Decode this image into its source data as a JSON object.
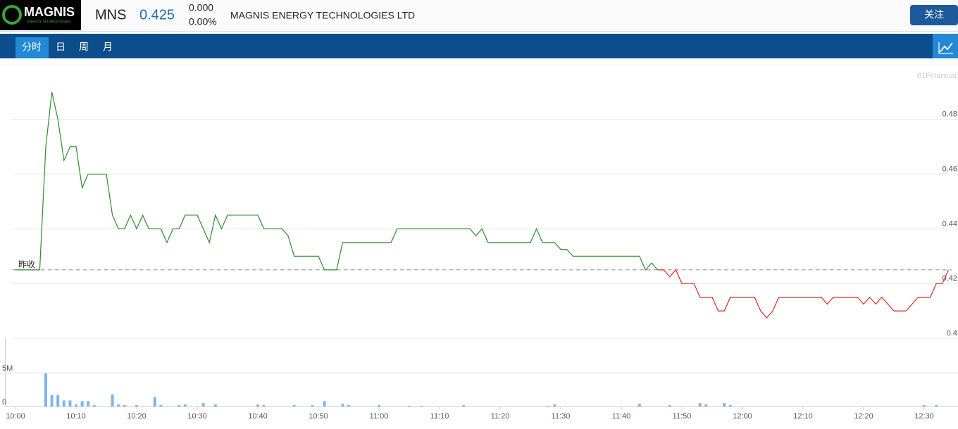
{
  "header": {
    "logo": "MAGNIS",
    "logo_sub": "ENERGY TECHNOLOGIES",
    "symbol": "MNS",
    "price": "0.425",
    "change": "0.000",
    "change_pct": "0.00%",
    "name": "MAGNIS ENERGY TECHNOLOGIES LTD",
    "follow_button": "关注"
  },
  "tabs": [
    "分时",
    "日",
    "周",
    "月"
  ],
  "watermark": "61Financial",
  "chart_data": [
    {
      "type": "line",
      "x": [
        0,
        4,
        5,
        6,
        7,
        8,
        9,
        10,
        11,
        12,
        15,
        16,
        17,
        18,
        19,
        20,
        21,
        22,
        24,
        25,
        26,
        27,
        28,
        30,
        32,
        33,
        34,
        35,
        40,
        41,
        44,
        45,
        46,
        50,
        51,
        53,
        54,
        62,
        63,
        75,
        76,
        77,
        78,
        85,
        86,
        87,
        89,
        90,
        91,
        92,
        103,
        104,
        105,
        106,
        107,
        108,
        109,
        110,
        112,
        113,
        115,
        116,
        117,
        118,
        122,
        123,
        124,
        125,
        126,
        133,
        134,
        135,
        139,
        140,
        141,
        142,
        143,
        145,
        147,
        148,
        149,
        151,
        152,
        153,
        154
      ],
      "values": [
        0.425,
        0.425,
        0.47,
        0.49,
        0.48,
        0.465,
        0.47,
        0.47,
        0.455,
        0.46,
        0.46,
        0.445,
        0.44,
        0.44,
        0.445,
        0.44,
        0.445,
        0.44,
        0.44,
        0.435,
        0.44,
        0.44,
        0.445,
        0.445,
        0.435,
        0.445,
        0.44,
        0.445,
        0.445,
        0.44,
        0.44,
        0.4375,
        0.43,
        0.43,
        0.425,
        0.425,
        0.435,
        0.435,
        0.44,
        0.44,
        0.4375,
        0.44,
        0.435,
        0.435,
        0.44,
        0.435,
        0.435,
        0.4325,
        0.4325,
        0.43,
        0.43,
        0.425,
        0.4275,
        0.425,
        0.425,
        0.4225,
        0.425,
        0.42,
        0.42,
        0.415,
        0.415,
        0.41,
        0.41,
        0.415,
        0.415,
        0.41,
        0.4075,
        0.41,
        0.415,
        0.415,
        0.4125,
        0.415,
        0.415,
        0.4125,
        0.415,
        0.4125,
        0.415,
        0.41,
        0.41,
        0.4125,
        0.415,
        0.415,
        0.42,
        0.42,
        0.425
      ],
      "up_color": "#2e8b2e",
      "down_color": "#e0261e",
      "reference": {
        "label": "昨收",
        "value": 0.425
      },
      "xlim": [
        -0.5,
        154.5
      ],
      "ylim": [
        0.4,
        0.5
      ],
      "yticks": [
        0.4,
        0.42,
        0.44,
        0.46,
        0.48
      ]
    },
    {
      "type": "bar",
      "x": [
        5,
        6,
        7,
        8,
        9,
        10,
        11,
        12,
        13,
        16,
        17,
        18,
        20,
        23,
        24,
        27,
        28,
        31,
        33,
        40,
        41,
        46,
        49,
        51,
        54,
        55,
        60,
        65,
        67,
        74,
        88,
        89,
        103,
        108,
        113,
        114,
        117,
        118,
        150,
        152
      ],
      "values": [
        4900000,
        1700000,
        1700000,
        900000,
        900000,
        300000,
        800000,
        800000,
        200000,
        1800000,
        300000,
        200000,
        200000,
        1400000,
        200000,
        200000,
        300000,
        500000,
        300000,
        300000,
        200000,
        200000,
        200000,
        800000,
        400000,
        200000,
        200000,
        100000,
        100000,
        200000,
        100000,
        300000,
        400000,
        200000,
        500000,
        300000,
        500000,
        200000,
        200000,
        200000
      ],
      "color": "#7cb5ec",
      "xlim": [
        -0.5,
        154.5
      ],
      "ylim": [
        0,
        10100000
      ],
      "yticks": [
        0,
        {
          "value": 5000000,
          "label": "5M"
        }
      ],
      "xticks": [
        {
          "value": 0,
          "label": "10:00"
        },
        {
          "value": 10,
          "label": "10:10"
        },
        {
          "value": 20,
          "label": "10:20"
        },
        {
          "value": 30,
          "label": "10:30"
        },
        {
          "value": 40,
          "label": "10:40"
        },
        {
          "value": 50,
          "label": "10:50"
        },
        {
          "value": 60,
          "label": "11:00"
        },
        {
          "value": 70,
          "label": "11:10"
        },
        {
          "value": 80,
          "label": "11:20"
        },
        {
          "value": 90,
          "label": "11:30"
        },
        {
          "value": 100,
          "label": "11:40"
        },
        {
          "value": 110,
          "label": "11:50"
        },
        {
          "value": 120,
          "label": "12:00"
        },
        {
          "value": 130,
          "label": "12:10"
        },
        {
          "value": 140,
          "label": "12:20"
        },
        {
          "value": 150,
          "label": "12:30"
        }
      ]
    }
  ]
}
